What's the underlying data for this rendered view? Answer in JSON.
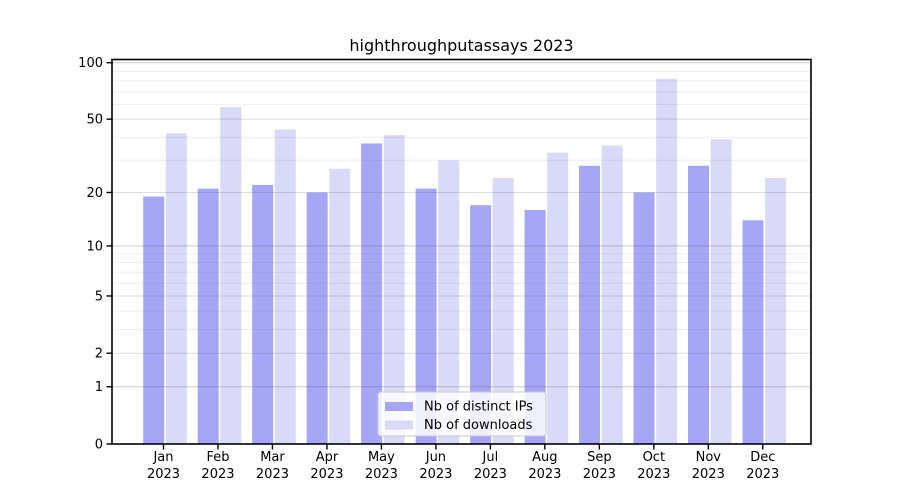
{
  "title": "highthroughputassays 2023",
  "chart_data": {
    "type": "bar",
    "title": "highthroughputassays 2023",
    "xlabel": "",
    "ylabel": "",
    "scale": "log1p",
    "ylim": [
      0,
      104
    ],
    "grid": true,
    "legend_position": "lower center",
    "categories": [
      "Jan",
      "Feb",
      "Mar",
      "Apr",
      "May",
      "Jun",
      "Jul",
      "Aug",
      "Sep",
      "Oct",
      "Nov",
      "Dec"
    ],
    "year_line": "2023",
    "series": [
      {
        "name": "Nb of distinct IPs",
        "color": "#a6a6f7",
        "values": [
          19,
          21,
          22,
          20,
          37,
          21,
          17,
          16,
          28,
          20,
          28,
          14
        ]
      },
      {
        "name": "Nb of downloads",
        "color": "#d9d9f8",
        "values": [
          42,
          58,
          44,
          27,
          41,
          30,
          24,
          33,
          36,
          82,
          39,
          24
        ]
      }
    ],
    "yticks": [
      0,
      1,
      2,
      5,
      10,
      20,
      50,
      100
    ],
    "decade_gridlines": [
      1,
      10,
      100
    ],
    "mid_gridlines": [
      2,
      5,
      20,
      50
    ],
    "minor_gridlines": [
      3,
      4,
      6,
      7,
      8,
      9,
      30,
      40,
      60,
      70,
      80,
      90
    ]
  },
  "colors": {
    "background": "#ffffff",
    "spine": "#000000",
    "grid_decade": "rgba(85,85,85,0.30)",
    "grid_mid": "rgba(85,85,85,0.20)",
    "grid_minor": "rgba(85,85,85,0.10)",
    "legend_border": "#c9c9c9",
    "legend_bg": "#ffffff"
  }
}
